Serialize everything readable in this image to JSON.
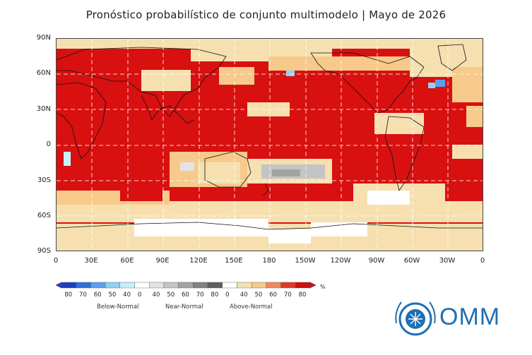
{
  "title": "Pronóstico probabilístico de conjunto multimodelo | Mayo de 2026",
  "y_ticks": [
    "90N",
    "60N",
    "30N",
    "0",
    "30S",
    "60S",
    "90S"
  ],
  "x_ticks": [
    "0",
    "30E",
    "60E",
    "90E",
    "120E",
    "150E",
    "180",
    "150W",
    "120W",
    "90W",
    "60W",
    "30W",
    "0"
  ],
  "legend": {
    "numbers": [
      "80",
      "70",
      "60",
      "50",
      "40",
      "0",
      "40",
      "50",
      "60",
      "70",
      "80",
      "0",
      "40",
      "50",
      "60",
      "70",
      "80"
    ],
    "percent": "%",
    "categories": [
      "Below-Normal",
      "Near-Normal",
      "Above-Normal"
    ],
    "colors": {
      "below": [
        "#1f3fbf",
        "#2f6fe0",
        "#5aa0f0",
        "#8fd0f5",
        "#c6f0fa"
      ],
      "near": [
        "#ffffff",
        "#e3e3e3",
        "#c4c4c4",
        "#a3a3a3",
        "#828282",
        "#5e5e5e"
      ],
      "above": [
        "#ffffff",
        "#f6e0b0",
        "#f7c98a",
        "#f08a5a",
        "#e03a2a",
        "#d10d0d"
      ]
    }
  },
  "logo": {
    "text": "OMM",
    "color": "#1f6fb3"
  }
}
